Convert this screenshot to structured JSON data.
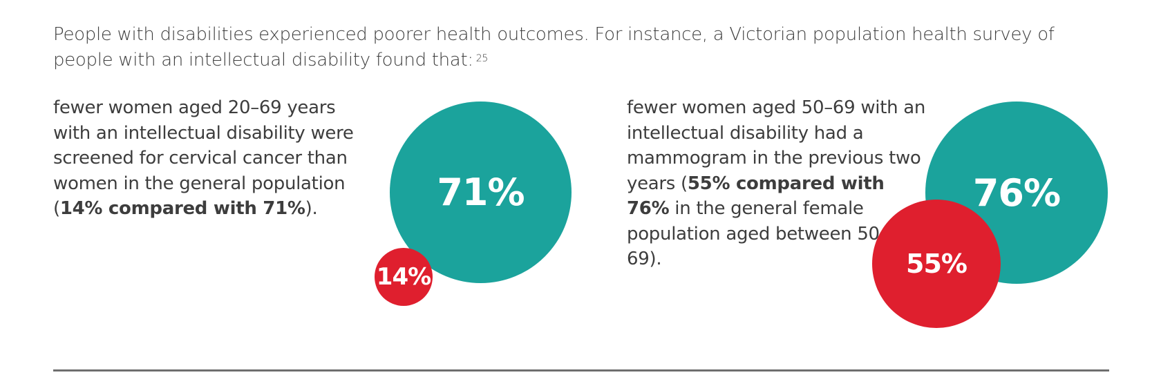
{
  "intro": {
    "text": "People with disabilities experienced poorer health outcomes. For instance, a Victorian population health survey of people with an intellectual disability found that:",
    "footnote": "25"
  },
  "stat1": {
    "text_before": "fewer women aged 20–69 years with an intellectual disability were screened for cervical cancer than women in the general population (",
    "bold": "14% compared with 71%",
    "text_after": ").",
    "large_value": "71%",
    "small_value": "14%",
    "large_color": "#1ba39c",
    "small_color": "#df1f2e"
  },
  "stat2": {
    "text_before": "fewer women aged 50–69 with an intellectual disability had a mammogram in the previous two years (",
    "bold": "55% compared with 76%",
    "text_after": " in the general female population aged between 50 and 69).",
    "large_value": "76%",
    "small_value": "55%",
    "large_color": "#1ba39c",
    "small_color": "#df1f2e"
  }
}
